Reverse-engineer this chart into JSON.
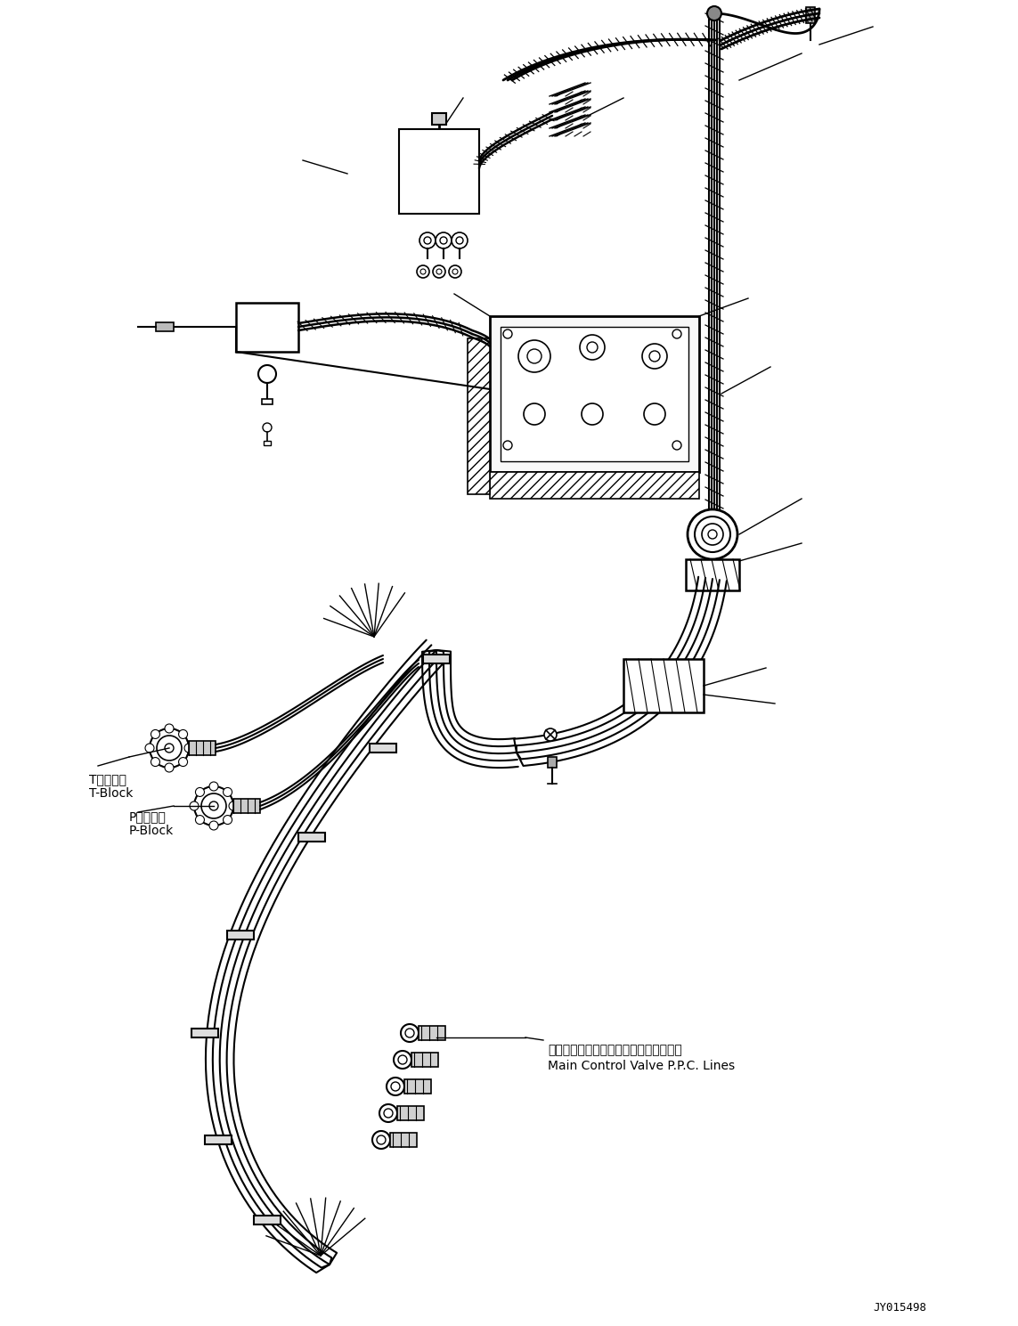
{
  "background_color": "#ffffff",
  "line_color": "#000000",
  "diagram_code": "JY015498",
  "label_t_block_jp": "Tブロック",
  "label_t_block_en": "T-Block",
  "label_p_block_jp": "Pブロック",
  "label_p_block_en": "P-Block",
  "label_main_valve_jp": "メインコントロールバルブＰＰＣライン",
  "label_main_valve_en": "Main Control Valve P.P.C. Lines",
  "figsize": [
    11.43,
    14.89
  ],
  "dpi": 100
}
